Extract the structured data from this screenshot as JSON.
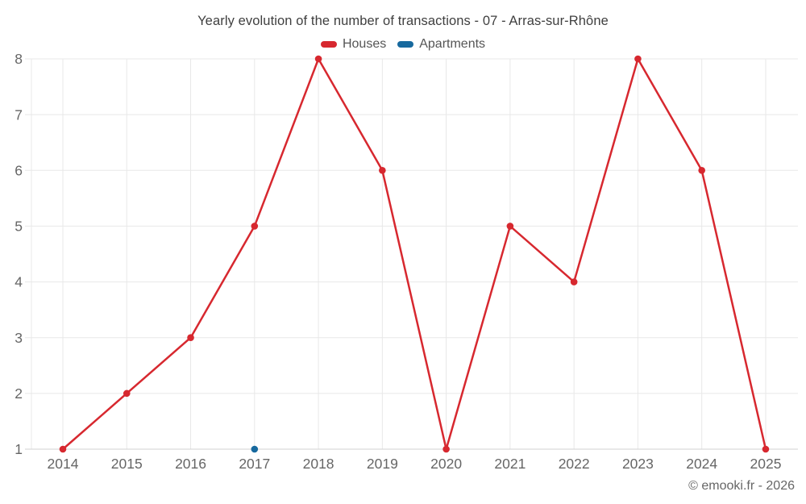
{
  "header": {
    "title": "Yearly evolution of the number of transactions - 07 - Arras-sur-Rhône"
  },
  "legend": {
    "items": [
      {
        "label": "Houses",
        "color": "#d7282f"
      },
      {
        "label": "Apartments",
        "color": "#17699e"
      }
    ]
  },
  "chart_data": {
    "type": "line",
    "title": "Yearly evolution of the number of transactions - 07 - Arras-sur-Rhône",
    "categories": [
      "2014",
      "2015",
      "2016",
      "2017",
      "2018",
      "2019",
      "2020",
      "2021",
      "2022",
      "2023",
      "2024",
      "2025"
    ],
    "series": [
      {
        "name": "Houses",
        "color": "#d7282f",
        "values": [
          1,
          2,
          3,
          5,
          8,
          6,
          1,
          5,
          4,
          8,
          6,
          1
        ]
      },
      {
        "name": "Apartments",
        "color": "#17699e",
        "values": [
          null,
          null,
          null,
          1,
          null,
          null,
          null,
          null,
          null,
          null,
          null,
          null
        ]
      }
    ],
    "xlabel": "",
    "ylabel": "",
    "ylim": [
      1,
      8
    ],
    "yticks": [
      1,
      2,
      3,
      4,
      5,
      6,
      7,
      8
    ],
    "grid": true,
    "legend_position": "top",
    "grid_color": "#e8e8e8",
    "axis_line_color": "#d2d2d2",
    "tick_label_color": "#666666"
  },
  "footer": {
    "credit": "© emooki.fr - 2026"
  }
}
